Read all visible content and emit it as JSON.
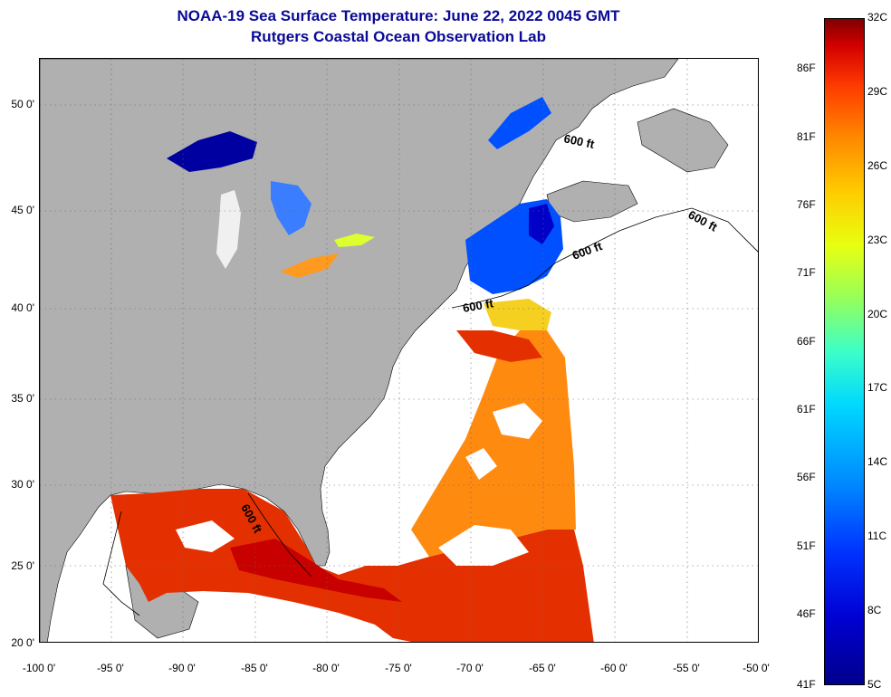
{
  "header": {
    "title": "NOAA-19 Sea Surface Temperature:  June 22, 2022 0045 GMT",
    "subtitle": "Rutgers Coastal Ocean Observation Lab"
  },
  "map": {
    "lon_range": [
      -100,
      -50
    ],
    "lat_range": [
      20,
      52.5
    ],
    "lat_labels": [
      "20 0'",
      "25 0'",
      "30 0'",
      "35 0'",
      "40 0'",
      "45 0'",
      "50 0'"
    ],
    "lon_labels": [
      "-100 0'",
      "-95 0'",
      "-90 0'",
      "-85 0'",
      "-80 0'",
      "-75 0'",
      "-70 0'",
      "-65 0'",
      "-60 0'",
      "-55 0'",
      "-50 0'"
    ],
    "contour_labels": [
      "600 ft",
      "600 ft",
      "600 ft",
      "600 ft",
      "600 ft"
    ],
    "colors": {
      "land": "#b0b0b0",
      "cloud": "#ffffff",
      "warm": "#e43000",
      "hot": "#c80000",
      "mid": "#ff8a10",
      "cool": "#0050ff",
      "cold": "#0000a0",
      "grid": "#666666"
    }
  },
  "colorbar": {
    "celsius_labels": [
      "32C",
      "29C",
      "26C",
      "23C",
      "20C",
      "17C",
      "14C",
      "11C",
      "8C",
      "5C"
    ],
    "fahrenheit_labels": [
      "86F",
      "81F",
      "76F",
      "71F",
      "66F",
      "61F",
      "56F",
      "51F",
      "46F",
      "41F"
    ]
  }
}
